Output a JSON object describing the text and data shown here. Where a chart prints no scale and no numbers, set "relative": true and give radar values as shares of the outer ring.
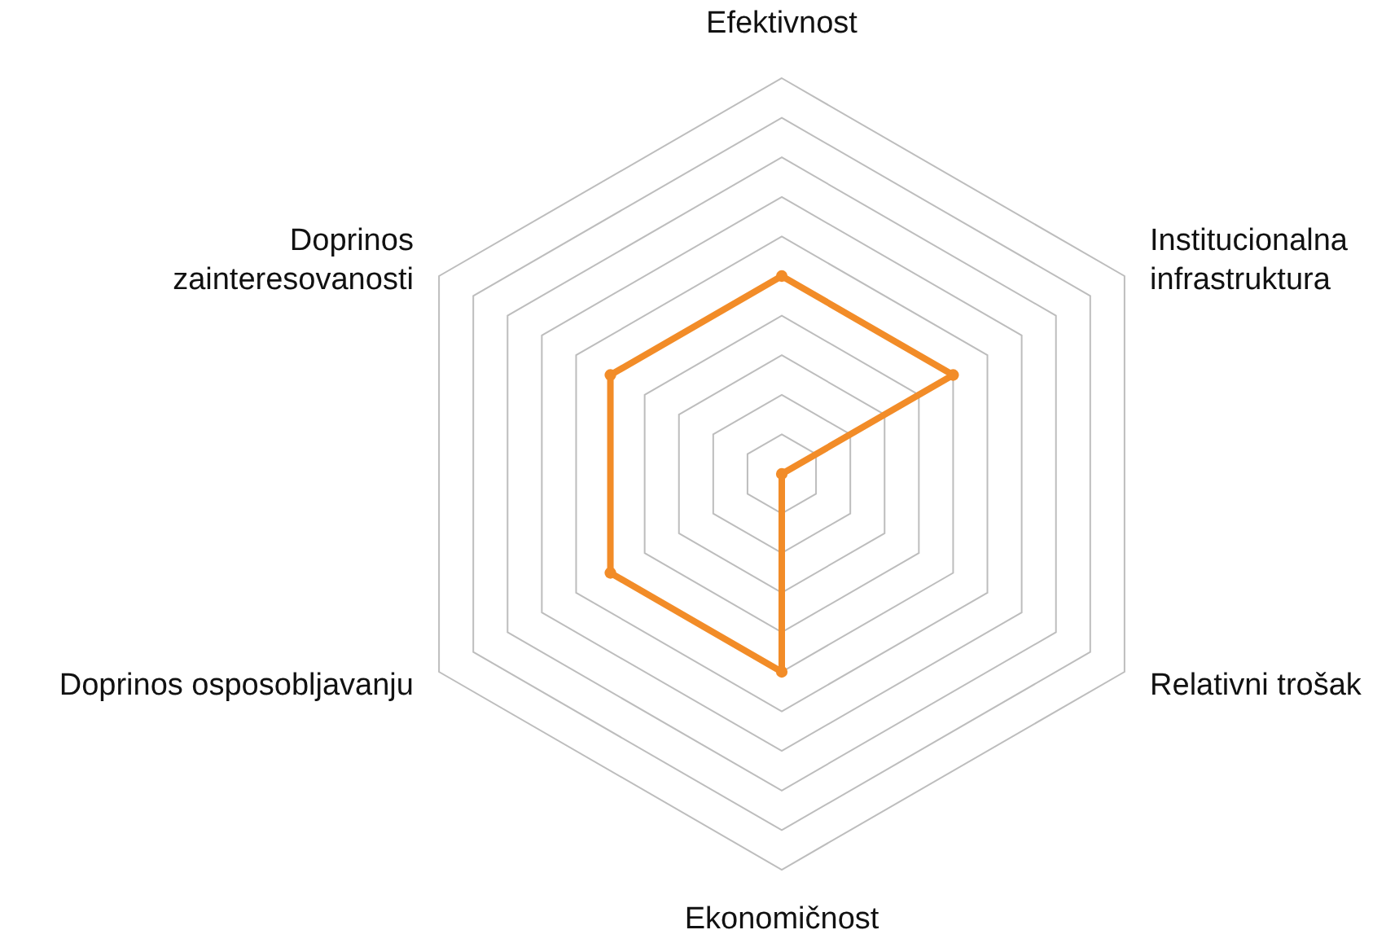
{
  "chart_data": {
    "type": "radar",
    "relative": true,
    "grid": true,
    "marker": "circle",
    "categories": [
      "Efektivnost",
      "Institucionalna\ninfrastruktura",
      "Relativni trošak",
      "Ekonomičnost",
      "Doprinos osposobljavanju",
      "Doprinos\nzainteresovanosti"
    ],
    "series": [
      {
        "color": "#f28c28",
        "values": [
          0.5,
          0.5,
          0,
          0.5,
          0.5,
          0.5
        ]
      }
    ]
  }
}
